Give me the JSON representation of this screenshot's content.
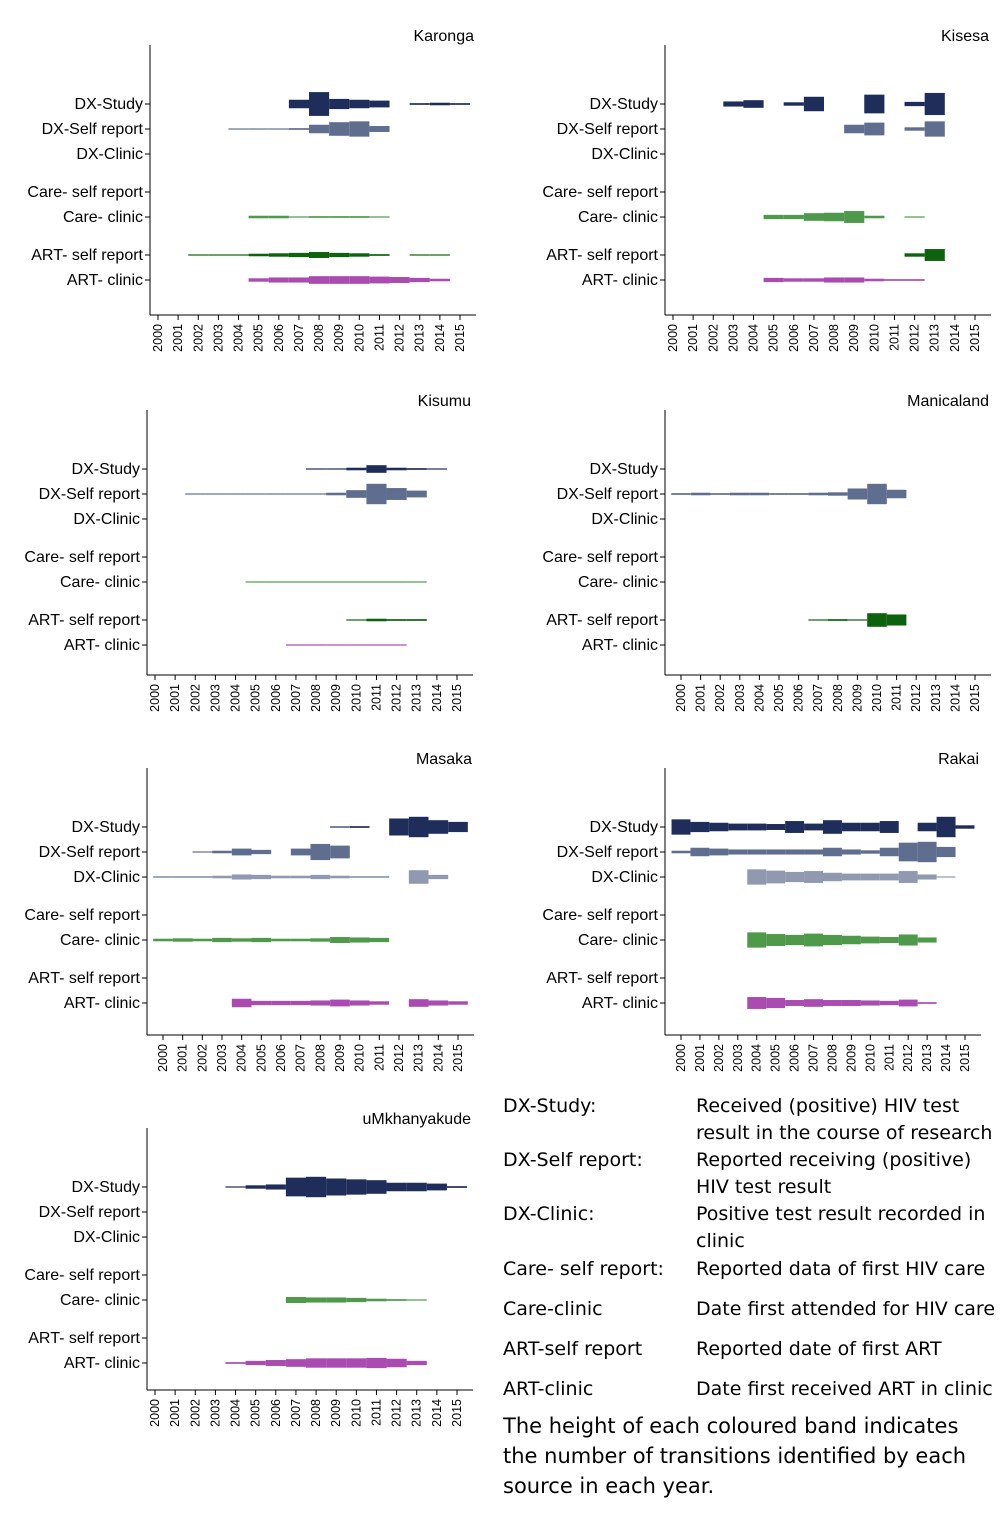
{
  "rows": [
    "DX-Study",
    "DX-Self report",
    "DX-Clinic",
    "Care- self report",
    "Care- clinic",
    "ART- self report",
    "ART- clinic"
  ],
  "years": [
    "2000",
    "2001",
    "2002",
    "2003",
    "2004",
    "2005",
    "2006",
    "2007",
    "2008",
    "2009",
    "2010",
    "2011",
    "2012",
    "2013",
    "2014",
    "2015"
  ],
  "colors": {
    "DX-Study": "#1f2d5a",
    "DX-Self report": "#5f6e8f",
    "DX-Clinic": "#9099b0",
    "Care- self report": "#2f7f2f",
    "Care- clinic": "#4e994a",
    "ART- self report": "#0d620d",
    "ART- clinic": "#a94bb0"
  },
  "legend": [
    {
      "term": "DX-Study:",
      "definition": "Received (positive) HIV test result in the course of research"
    },
    {
      "term": "DX-Self report:",
      "definition": "Reported receiving (positive) HIV test result"
    },
    {
      "term": "DX-Clinic:",
      "definition": "Positive test result recorded in clinic"
    },
    {
      "term": "Care- self report:",
      "definition": "Reported data of first HIV care"
    },
    {
      "term": "Care-clinic",
      "definition": "Date first attended for HIV care"
    },
    {
      "term": "ART-self report",
      "definition": "Reported date of first ART"
    },
    {
      "term": "ART-clinic",
      "definition": "Date first received ART in clinic"
    }
  ],
  "note": "The height of each coloured band indicates the number of transitions identified by each source in each year.",
  "chart_data": [
    {
      "type": "area",
      "title": "Karonga",
      "x": [
        2000,
        2001,
        2002,
        2003,
        2004,
        2005,
        2006,
        2007,
        2008,
        2009,
        2010,
        2011,
        2012,
        2013,
        2014,
        2015
      ],
      "series": [
        {
          "name": "DX-Study",
          "values": [
            0,
            0,
            0,
            0,
            0,
            0,
            0,
            10,
            28,
            12,
            10,
            8,
            0,
            2,
            3,
            2
          ]
        },
        {
          "name": "DX-Self report",
          "values": [
            0,
            0,
            0,
            0,
            1,
            1,
            1,
            2,
            10,
            16,
            18,
            7,
            0,
            0,
            0,
            0
          ]
        },
        {
          "name": "DX-Clinic",
          "values": [
            0,
            0,
            0,
            0,
            0,
            0,
            0,
            0,
            0,
            0,
            0,
            0,
            0,
            0,
            0,
            0
          ]
        },
        {
          "name": "Care- self report",
          "values": [
            0,
            0,
            0,
            0,
            0,
            0,
            0,
            0,
            0,
            0,
            0,
            0,
            0,
            0,
            0,
            0
          ]
        },
        {
          "name": "Care- clinic",
          "values": [
            0,
            0,
            0,
            0,
            0,
            3,
            3,
            1,
            2,
            2,
            2,
            1,
            0,
            0,
            0,
            0
          ]
        },
        {
          "name": "ART- self report",
          "values": [
            0,
            0,
            1,
            1,
            1,
            3,
            4,
            5,
            7,
            5,
            4,
            2,
            0,
            1,
            1,
            0
          ]
        },
        {
          "name": "ART- clinic",
          "values": [
            0,
            0,
            0,
            0,
            0,
            4,
            6,
            6,
            9,
            9,
            9,
            8,
            7,
            5,
            3,
            0
          ]
        }
      ]
    },
    {
      "type": "area",
      "title": "Kisesa",
      "x": [
        2000,
        2001,
        2002,
        2003,
        2004,
        2005,
        2006,
        2007,
        2008,
        2009,
        2010,
        2011,
        2012,
        2013,
        2014,
        2015
      ],
      "series": [
        {
          "name": "DX-Study",
          "values": [
            0,
            0,
            0,
            6,
            9,
            0,
            4,
            17,
            0,
            0,
            22,
            0,
            5,
            26,
            0,
            0
          ]
        },
        {
          "name": "DX-Self report",
          "values": [
            0,
            0,
            0,
            0,
            0,
            0,
            0,
            0,
            0,
            10,
            15,
            0,
            4,
            18,
            0,
            0
          ]
        },
        {
          "name": "DX-Clinic",
          "values": [
            0,
            0,
            0,
            0,
            0,
            0,
            0,
            0,
            0,
            0,
            0,
            0,
            0,
            0,
            0,
            0
          ]
        },
        {
          "name": "Care- self report",
          "values": [
            0,
            0,
            0,
            0,
            0,
            0,
            0,
            0,
            0,
            0,
            0,
            0,
            0,
            0,
            0,
            0
          ]
        },
        {
          "name": "Care- clinic",
          "values": [
            0,
            0,
            0,
            0,
            0,
            5,
            5,
            9,
            10,
            14,
            3,
            0,
            1,
            0,
            0,
            0
          ]
        },
        {
          "name": "ART- self report",
          "values": [
            0,
            0,
            0,
            0,
            0,
            0,
            0,
            0,
            0,
            0,
            0,
            0,
            4,
            14,
            0,
            0
          ]
        },
        {
          "name": "ART- clinic",
          "values": [
            0,
            0,
            0,
            0,
            0,
            5,
            4,
            4,
            6,
            6,
            3,
            2,
            2,
            0,
            0,
            0
          ]
        }
      ]
    },
    {
      "type": "area",
      "title": "Kisumu",
      "x": [
        2000,
        2001,
        2002,
        2003,
        2004,
        2005,
        2006,
        2007,
        2008,
        2009,
        2010,
        2011,
        2012,
        2013,
        2014,
        2015
      ],
      "series": [
        {
          "name": "DX-Study",
          "values": [
            0,
            0,
            0,
            0,
            0,
            0,
            0,
            0,
            1,
            1,
            3,
            9,
            3,
            2,
            1,
            0
          ]
        },
        {
          "name": "DX-Self report",
          "values": [
            0,
            0,
            1,
            1,
            1,
            1,
            1,
            1,
            1,
            3,
            9,
            24,
            14,
            8,
            0,
            0
          ]
        },
        {
          "name": "DX-Clinic",
          "values": [
            0,
            0,
            0,
            0,
            0,
            0,
            0,
            0,
            0,
            0,
            0,
            0,
            0,
            0,
            0,
            0
          ]
        },
        {
          "name": "Care- self report",
          "values": [
            0,
            0,
            0,
            0,
            0,
            0,
            0,
            0,
            0,
            0,
            0,
            0,
            0,
            0,
            0,
            0
          ]
        },
        {
          "name": "Care- clinic",
          "values": [
            0,
            0,
            0,
            0,
            0,
            1,
            1,
            1,
            1,
            1,
            1,
            1,
            1,
            1,
            0,
            0
          ]
        },
        {
          "name": "ART- self report",
          "values": [
            0,
            0,
            0,
            0,
            0,
            0,
            0,
            0,
            0,
            0,
            1,
            3,
            2,
            2,
            0,
            0
          ]
        },
        {
          "name": "ART- clinic",
          "values": [
            0,
            0,
            0,
            0,
            0,
            0,
            0,
            1,
            1,
            1,
            1,
            1,
            1,
            0,
            0,
            0
          ]
        }
      ]
    },
    {
      "type": "area",
      "title": "Manicaland",
      "x": [
        2000,
        2001,
        2002,
        2003,
        2004,
        2005,
        2006,
        2007,
        2008,
        2009,
        2010,
        2011,
        2012,
        2013,
        2014,
        2015
      ],
      "series": [
        {
          "name": "DX-Study",
          "values": [
            0,
            0,
            0,
            0,
            0,
            0,
            0,
            0,
            0,
            0,
            0,
            0,
            0,
            0,
            0,
            0
          ]
        },
        {
          "name": "DX-Self report",
          "values": [
            2,
            3,
            2,
            3,
            3,
            2,
            2,
            3,
            4,
            13,
            24,
            10,
            0,
            0,
            0,
            0
          ]
        },
        {
          "name": "DX-Clinic",
          "values": [
            0,
            0,
            0,
            0,
            0,
            0,
            0,
            0,
            0,
            0,
            0,
            0,
            0,
            0,
            0,
            0
          ]
        },
        {
          "name": "Care- self report",
          "values": [
            0,
            0,
            0,
            0,
            0,
            0,
            0,
            0,
            0,
            0,
            0,
            0,
            0,
            0,
            0,
            0
          ]
        },
        {
          "name": "Care- clinic",
          "values": [
            0,
            0,
            0,
            0,
            0,
            0,
            0,
            0,
            0,
            0,
            0,
            0,
            0,
            0,
            0,
            0
          ]
        },
        {
          "name": "ART- self report",
          "values": [
            0,
            0,
            0,
            0,
            0,
            0,
            0,
            1,
            2,
            1,
            16,
            13,
            0,
            0,
            0,
            0
          ]
        },
        {
          "name": "ART- clinic",
          "values": [
            0,
            0,
            0,
            0,
            0,
            0,
            0,
            0,
            0,
            0,
            0,
            0,
            0,
            0,
            0,
            0
          ]
        }
      ]
    },
    {
      "type": "area",
      "title": "Masaka",
      "x": [
        2000,
        2001,
        2002,
        2003,
        2004,
        2005,
        2006,
        2007,
        2008,
        2009,
        2010,
        2011,
        2012,
        2013,
        2014,
        2015
      ],
      "series": [
        {
          "name": "DX-Study",
          "values": [
            0,
            0,
            0,
            0,
            0,
            0,
            0,
            0,
            0,
            1,
            2,
            0,
            20,
            24,
            16,
            12
          ]
        },
        {
          "name": "DX-Self report",
          "values": [
            0,
            0,
            1,
            3,
            8,
            5,
            0,
            8,
            19,
            15,
            0,
            0,
            0,
            0,
            0,
            0
          ]
        },
        {
          "name": "DX-Clinic",
          "values": [
            2,
            2,
            2,
            3,
            6,
            5,
            3,
            3,
            5,
            3,
            2,
            2,
            0,
            16,
            5,
            0
          ]
        },
        {
          "name": "Care- self report",
          "values": [
            0,
            0,
            0,
            0,
            0,
            0,
            0,
            0,
            0,
            0,
            0,
            0,
            0,
            0,
            0,
            0
          ]
        },
        {
          "name": "Care- clinic",
          "values": [
            3,
            4,
            3,
            5,
            4,
            5,
            3,
            3,
            4,
            7,
            6,
            5,
            0,
            0,
            0,
            0
          ]
        },
        {
          "name": "ART- self report",
          "values": [
            0,
            0,
            0,
            0,
            0,
            0,
            0,
            0,
            0,
            0,
            0,
            0,
            0,
            0,
            0,
            0
          ]
        },
        {
          "name": "ART- clinic",
          "values": [
            0,
            0,
            0,
            0,
            10,
            5,
            5,
            5,
            6,
            8,
            6,
            4,
            0,
            9,
            6,
            4
          ]
        }
      ]
    },
    {
      "type": "area",
      "title": "Rakai",
      "x": [
        2000,
        2001,
        2002,
        2003,
        2004,
        2005,
        2006,
        2007,
        2008,
        2009,
        2010,
        2011,
        2012,
        2013,
        2014,
        2015
      ],
      "series": [
        {
          "name": "DX-Study",
          "values": [
            18,
            12,
            10,
            8,
            8,
            7,
            14,
            8,
            16,
            10,
            10,
            14,
            0,
            10,
            24,
            4
          ]
        },
        {
          "name": "DX-Self report",
          "values": [
            3,
            10,
            8,
            6,
            6,
            6,
            6,
            6,
            10,
            6,
            4,
            10,
            22,
            24,
            12,
            0
          ]
        },
        {
          "name": "DX-Clinic",
          "values": [
            0,
            0,
            0,
            0,
            18,
            15,
            12,
            14,
            10,
            8,
            8,
            8,
            14,
            6,
            1,
            0
          ]
        },
        {
          "name": "Care- self report",
          "values": [
            0,
            0,
            0,
            0,
            0,
            0,
            0,
            0,
            0,
            0,
            0,
            0,
            0,
            0,
            0,
            0
          ]
        },
        {
          "name": "Care- clinic",
          "values": [
            0,
            0,
            0,
            0,
            18,
            14,
            12,
            15,
            12,
            10,
            8,
            7,
            13,
            6,
            0,
            0
          ]
        },
        {
          "name": "ART- self report",
          "values": [
            0,
            0,
            0,
            0,
            0,
            0,
            0,
            0,
            0,
            0,
            0,
            0,
            0,
            0,
            0,
            0
          ]
        },
        {
          "name": "ART- clinic",
          "values": [
            0,
            0,
            0,
            0,
            14,
            12,
            7,
            9,
            7,
            7,
            6,
            5,
            8,
            2,
            0,
            0
          ]
        }
      ]
    },
    {
      "type": "area",
      "title": "uMkhanyakude",
      "x": [
        2000,
        2001,
        2002,
        2003,
        2004,
        2005,
        2006,
        2007,
        2008,
        2009,
        2010,
        2011,
        2012,
        2013,
        2014,
        2015
      ],
      "series": [
        {
          "name": "DX-Study",
          "values": [
            0,
            0,
            0,
            0,
            1,
            4,
            6,
            22,
            24,
            20,
            18,
            16,
            10,
            10,
            8,
            2
          ]
        },
        {
          "name": "DX-Self report",
          "values": [
            0,
            0,
            0,
            0,
            0,
            0,
            0,
            0,
            0,
            0,
            0,
            0,
            0,
            0,
            0,
            0
          ]
        },
        {
          "name": "DX-Clinic",
          "values": [
            0,
            0,
            0,
            0,
            0,
            0,
            0,
            0,
            0,
            0,
            0,
            0,
            0,
            0,
            0,
            0
          ]
        },
        {
          "name": "Care- self report",
          "values": [
            0,
            0,
            0,
            0,
            0,
            0,
            0,
            0,
            0,
            0,
            0,
            0,
            0,
            0,
            0,
            0
          ]
        },
        {
          "name": "Care- clinic",
          "values": [
            0,
            0,
            0,
            0,
            0,
            0,
            0,
            7,
            6,
            6,
            5,
            3,
            2,
            1,
            0,
            0
          ]
        },
        {
          "name": "ART- self report",
          "values": [
            0,
            0,
            0,
            0,
            0,
            0,
            0,
            0,
            0,
            0,
            0,
            0,
            0,
            0,
            0,
            0
          ]
        },
        {
          "name": "ART- clinic",
          "values": [
            0,
            0,
            0,
            0,
            2,
            5,
            7,
            9,
            11,
            11,
            11,
            12,
            10,
            5,
            0,
            0
          ]
        }
      ]
    }
  ]
}
